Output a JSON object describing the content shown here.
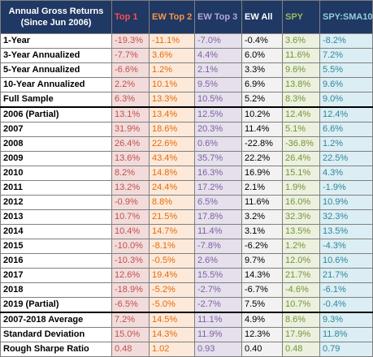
{
  "header": {
    "title_line1": "Annual Gross Returns",
    "title_line2": "(Since Jun 2006)",
    "columns": [
      "Top 1",
      "EW Top 2",
      "EW Top 3",
      "EW All",
      "SPY",
      "SPY:SMA10"
    ]
  },
  "colors": {
    "header_bg": "#1f3864",
    "top1": "#c0504d",
    "ew_top2": "#e46c0a",
    "ew_top3": "#7f5f9f",
    "ew_all": "#000000",
    "spy": "#76923c",
    "spy_sma10": "#31859c"
  },
  "rows": [
    {
      "label": "1-Year",
      "values": [
        "-19.3%",
        "-11.1%",
        "-7.0%",
        "-0.4%",
        "3.6%",
        "-8.2%"
      ]
    },
    {
      "label": "3-Year Annualized",
      "values": [
        "-7.7%",
        "3.6%",
        "4.4%",
        "6.0%",
        "11.6%",
        "7.2%"
      ]
    },
    {
      "label": "5-Year Annualized",
      "values": [
        "-6.6%",
        "1.2%",
        "2.1%",
        "3.3%",
        "9.6%",
        "5.5%"
      ]
    },
    {
      "label": "10-Year Annualized",
      "values": [
        "2.2%",
        "10.1%",
        "9.5%",
        "6.9%",
        "13.8%",
        "9.6%"
      ]
    },
    {
      "label": "Full Sample",
      "values": [
        "6.3%",
        "13.3%",
        "10.5%",
        "5.2%",
        "8.3%",
        "9.0%"
      ]
    },
    {
      "label": "2006 (Partial)",
      "values": [
        "13.1%",
        "13.4%",
        "12.5%",
        "10.2%",
        "12.4%",
        "12.4%"
      ]
    },
    {
      "label": "2007",
      "values": [
        "31.9%",
        "18.6%",
        "20.3%",
        "11.4%",
        "5.1%",
        "6.6%"
      ]
    },
    {
      "label": "2008",
      "values": [
        "26.4%",
        "22.6%",
        "0.6%",
        "-22.8%",
        "-36.8%",
        "1.2%"
      ]
    },
    {
      "label": "2009",
      "values": [
        "13.6%",
        "43.4%",
        "35.7%",
        "22.2%",
        "26.4%",
        "22.5%"
      ]
    },
    {
      "label": "2010",
      "values": [
        "8.2%",
        "14.8%",
        "16.3%",
        "16.9%",
        "15.1%",
        "4.3%"
      ]
    },
    {
      "label": "2011",
      "values": [
        "13.2%",
        "24.4%",
        "17.2%",
        "2.1%",
        "1.9%",
        "-1.9%"
      ]
    },
    {
      "label": "2012",
      "values": [
        "-0.9%",
        "8.8%",
        "6.5%",
        "11.6%",
        "16.0%",
        "10.9%"
      ]
    },
    {
      "label": "2013",
      "values": [
        "10.7%",
        "21.5%",
        "17.8%",
        "3.2%",
        "32.3%",
        "32.3%"
      ]
    },
    {
      "label": "2014",
      "values": [
        "10.4%",
        "14.7%",
        "11.4%",
        "3.1%",
        "13.5%",
        "13.5%"
      ]
    },
    {
      "label": "2015",
      "values": [
        "-10.0%",
        "-8.1%",
        "-7.8%",
        "-6.2%",
        "1.2%",
        "-4.3%"
      ]
    },
    {
      "label": "2016",
      "values": [
        "-10.3%",
        "-0.5%",
        "2.6%",
        "9.7%",
        "12.0%",
        "10.6%"
      ]
    },
    {
      "label": "2017",
      "values": [
        "12.6%",
        "19.4%",
        "15.5%",
        "14.3%",
        "21.7%",
        "21.7%"
      ]
    },
    {
      "label": "2018",
      "values": [
        "-18.9%",
        "-5.2%",
        "-2.7%",
        "-6.7%",
        "-4.6%",
        "-6.1%"
      ]
    },
    {
      "label": "2019 (Partial)",
      "values": [
        "-6.5%",
        "-5.0%",
        "-2.7%",
        "7.5%",
        "10.7%",
        "-0.4%"
      ]
    },
    {
      "label": "2007-2018 Average",
      "values": [
        "7.2%",
        "14.5%",
        "11.1%",
        "4.9%",
        "8.6%",
        "9.3%"
      ]
    },
    {
      "label": "Standard Deviation",
      "values": [
        "15.0%",
        "14.3%",
        "11.9%",
        "12.3%",
        "17.9%",
        "11.8%"
      ]
    },
    {
      "label": "Rough Sharpe Ratio",
      "values": [
        "0.48",
        "1.02",
        "0.93",
        "0.40",
        "0.48",
        "0.79"
      ]
    }
  ]
}
